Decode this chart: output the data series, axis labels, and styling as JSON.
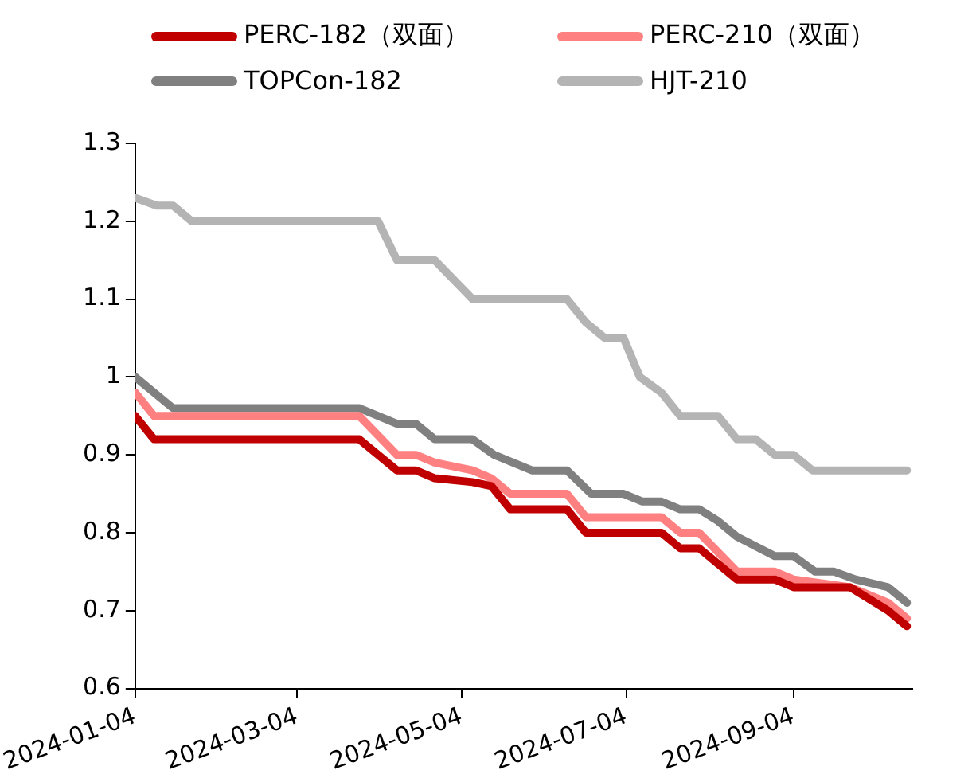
{
  "chart_data": {
    "type": "line",
    "legend": "top",
    "grid": false,
    "marker": "none",
    "line_style": "solid",
    "xlim": [
      "2024-01-04",
      "2024-10-18"
    ],
    "xticks": [
      "2024-01-04",
      "2024-03-04",
      "2024-05-04",
      "2024-07-04",
      "2024-09-04"
    ],
    "ylim": [
      0.6,
      1.3
    ],
    "yticks": [
      0.6,
      0.7,
      0.8,
      0.9,
      1,
      1.1,
      1.2,
      1.3
    ],
    "series": [
      {
        "name": "PERC-182（双面）",
        "color": "#c00000",
        "x": [
          "2024-01-04",
          "2024-01-11",
          "2024-03-27",
          "2024-04-10",
          "2024-04-17",
          "2024-04-24",
          "2024-05-08",
          "2024-05-15",
          "2024-05-22",
          "2024-06-12",
          "2024-06-19",
          "2024-07-17",
          "2024-07-24",
          "2024-07-31",
          "2024-08-14",
          "2024-08-28",
          "2024-09-04",
          "2024-09-25",
          "2024-10-09",
          "2024-10-16"
        ],
        "values": [
          0.95,
          0.92,
          0.92,
          0.88,
          0.88,
          0.87,
          0.865,
          0.86,
          0.83,
          0.83,
          0.8,
          0.8,
          0.78,
          0.78,
          0.74,
          0.74,
          0.73,
          0.73,
          0.7,
          0.68
        ]
      },
      {
        "name": "PERC-210（双面）",
        "color": "#ff8080",
        "x": [
          "2024-01-04",
          "2024-01-11",
          "2024-03-27",
          "2024-04-10",
          "2024-04-17",
          "2024-04-24",
          "2024-05-08",
          "2024-05-15",
          "2024-05-22",
          "2024-06-12",
          "2024-06-19",
          "2024-07-17",
          "2024-07-24",
          "2024-07-31",
          "2024-08-14",
          "2024-08-28",
          "2024-09-04",
          "2024-09-25",
          "2024-10-09",
          "2024-10-16"
        ],
        "values": [
          0.98,
          0.95,
          0.95,
          0.9,
          0.9,
          0.89,
          0.88,
          0.87,
          0.85,
          0.85,
          0.82,
          0.82,
          0.8,
          0.8,
          0.75,
          0.75,
          0.74,
          0.73,
          0.71,
          0.69
        ]
      },
      {
        "name": "TOPCon-182",
        "color": "#808080",
        "x": [
          "2024-01-04",
          "2024-01-18",
          "2024-03-27",
          "2024-04-10",
          "2024-04-17",
          "2024-04-24",
          "2024-05-08",
          "2024-05-16",
          "2024-05-30",
          "2024-06-12",
          "2024-06-21",
          "2024-07-03",
          "2024-07-10",
          "2024-07-17",
          "2024-07-24",
          "2024-07-31",
          "2024-08-07",
          "2024-08-14",
          "2024-08-28",
          "2024-09-04",
          "2024-09-12",
          "2024-09-19",
          "2024-09-27",
          "2024-10-09",
          "2024-10-16"
        ],
        "values": [
          1,
          0.96,
          0.96,
          0.94,
          0.94,
          0.92,
          0.92,
          0.9,
          0.88,
          0.88,
          0.85,
          0.85,
          0.84,
          0.84,
          0.83,
          0.83,
          0.815,
          0.795,
          0.77,
          0.77,
          0.75,
          0.75,
          0.74,
          0.73,
          0.71
        ]
      },
      {
        "name": "HJT-210",
        "color": "#b4b4b4",
        "x": [
          "2024-01-04",
          "2024-01-12",
          "2024-01-18",
          "2024-01-25",
          "2024-04-03",
          "2024-04-10",
          "2024-04-24",
          "2024-05-08",
          "2024-06-12",
          "2024-06-19",
          "2024-06-26",
          "2024-07-03",
          "2024-07-09",
          "2024-07-17",
          "2024-07-24",
          "2024-08-07",
          "2024-08-14",
          "2024-08-21",
          "2024-08-28",
          "2024-09-04",
          "2024-09-11",
          "2024-10-16"
        ],
        "values": [
          1.23,
          1.22,
          1.22,
          1.2,
          1.2,
          1.15,
          1.15,
          1.1,
          1.1,
          1.07,
          1.05,
          1.05,
          1,
          0.98,
          0.95,
          0.95,
          0.92,
          0.92,
          0.9,
          0.9,
          0.88,
          0.88
        ]
      }
    ]
  }
}
